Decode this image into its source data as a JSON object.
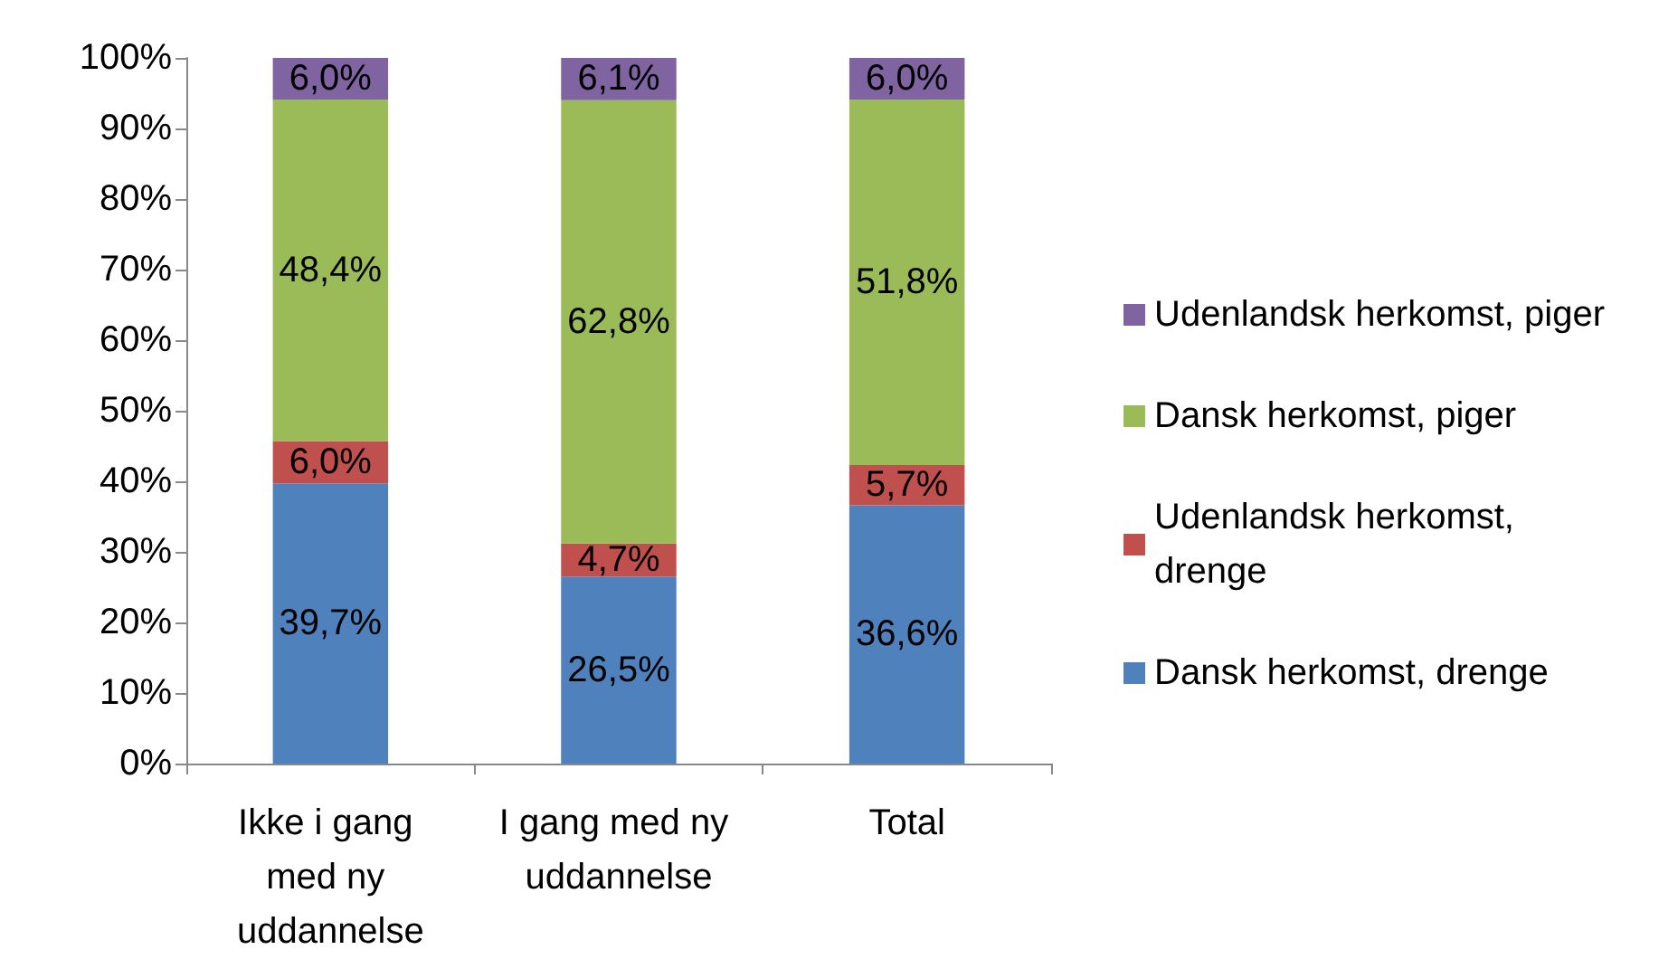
{
  "chart_data": {
    "type": "bar",
    "stacked": true,
    "categories": [
      "Ikke i gang med ny uddannelse",
      "I gang med ny uddannelse",
      "Total"
    ],
    "series": [
      {
        "name": "Dansk herkomst, drenge",
        "color": "#4f81bd",
        "values": [
          39.7,
          26.5,
          36.6
        ],
        "value_labels": [
          "39,7%",
          "26,5%",
          "36,6%"
        ]
      },
      {
        "name": "Udenlandsk herkomst, drenge",
        "color": "#c0504d",
        "values": [
          6.0,
          4.7,
          5.7
        ],
        "value_labels": [
          "6,0%",
          "4,7%",
          "5,7%"
        ]
      },
      {
        "name": "Dansk herkomst, piger",
        "color": "#9bbb59",
        "values": [
          48.4,
          62.8,
          51.8
        ],
        "value_labels": [
          "48,4%",
          "62,8%",
          "51,8%"
        ]
      },
      {
        "name": "Udenlandsk herkomst, piger",
        "color": "#8064a2",
        "values": [
          6.0,
          6.1,
          6.0
        ],
        "value_labels": [
          "6,0%",
          "6,1%",
          "6,0%"
        ]
      }
    ],
    "ylim": [
      0,
      100
    ],
    "yticks": [
      {
        "value": 0,
        "label": "0%"
      },
      {
        "value": 10,
        "label": "10%"
      },
      {
        "value": 20,
        "label": "20%"
      },
      {
        "value": 30,
        "label": "30%"
      },
      {
        "value": 40,
        "label": "40%"
      },
      {
        "value": 50,
        "label": "50%"
      },
      {
        "value": 60,
        "label": "60%"
      },
      {
        "value": 70,
        "label": "70%"
      },
      {
        "value": 80,
        "label": "80%"
      },
      {
        "value": 90,
        "label": "90%"
      },
      {
        "value": 100,
        "label": "100%"
      }
    ],
    "grid": false,
    "legend": "right"
  }
}
